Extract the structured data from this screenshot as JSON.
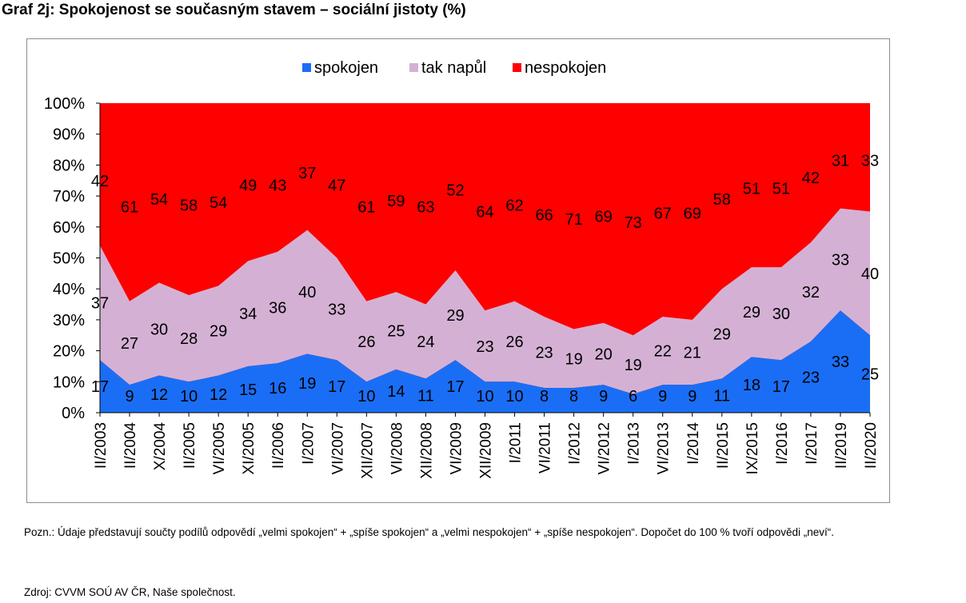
{
  "title": "Graf 2j: Spokojenost se současným stavem – sociální jistoty (%)",
  "note": "Pozn.: Údaje představují součty podílů odpovědí „velmi spokojen“ + „spíše spokojen“ a „velmi nespokojen“ + „spíše nespokojen“. Dopočet do 100 % tvoří odpovědi „neví“.",
  "source": "Zdroj: CVVM SOÚ AV ČR, Naše společnost.",
  "chart_data": {
    "type": "area",
    "stacked": true,
    "ylim": [
      0,
      100
    ],
    "y_ticks": [
      "0%",
      "10%",
      "20%",
      "30%",
      "40%",
      "50%",
      "60%",
      "70%",
      "80%",
      "90%",
      "100%"
    ],
    "legend_position": "top",
    "categories": [
      "II/2003",
      "II/2004",
      "X/2004",
      "II/2005",
      "VI/2005",
      "XI/2005",
      "II/2006",
      "I/2007",
      "VI/2007",
      "XII/2007",
      "VI/2008",
      "XII/2008",
      "VI/2009",
      "XII/2009",
      "I/2011",
      "VI/2011",
      "I/2012",
      "VI/2012",
      "I/2013",
      "VI/2013",
      "I/2014",
      "II/2015",
      "IX/2015",
      "I/2016",
      "I/2017",
      "II/2019",
      "II/2020"
    ],
    "series": [
      {
        "name": "spokojen",
        "color": "#1a6ef5",
        "values": [
          17,
          9,
          12,
          10,
          12,
          15,
          16,
          19,
          17,
          10,
          14,
          11,
          17,
          10,
          10,
          8,
          8,
          9,
          6,
          9,
          9,
          11,
          18,
          17,
          23,
          33,
          25
        ]
      },
      {
        "name": "tak napůl",
        "color": "#d4b1d4",
        "values": [
          37,
          27,
          30,
          28,
          29,
          34,
          36,
          40,
          33,
          26,
          25,
          24,
          29,
          23,
          26,
          23,
          19,
          20,
          19,
          22,
          21,
          29,
          29,
          30,
          32,
          33,
          40
        ]
      },
      {
        "name": "nespokojen",
        "color": "#ff0000",
        "values": [
          42,
          61,
          54,
          58,
          54,
          49,
          43,
          37,
          47,
          61,
          59,
          63,
          52,
          64,
          62,
          66,
          71,
          69,
          73,
          67,
          69,
          58,
          51,
          51,
          42,
          31,
          33
        ]
      }
    ]
  }
}
